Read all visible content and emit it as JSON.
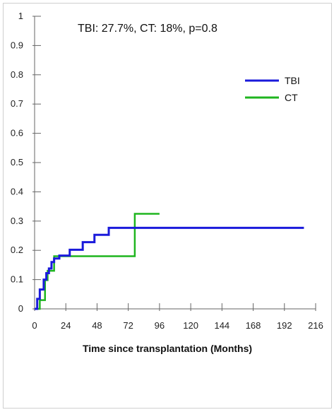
{
  "chart_data": {
    "type": "line",
    "title": "",
    "annotation": "TBI: 27.7%, CT: 18%, p=0.8",
    "xlabel": "Time since transplantation (Months)",
    "ylabel": "",
    "xlim": [
      0,
      216
    ],
    "ylim": [
      0,
      1
    ],
    "x_ticks": [
      0,
      24,
      48,
      72,
      96,
      120,
      144,
      168,
      192,
      216
    ],
    "y_ticks": [
      0,
      0.1,
      0.2,
      0.3,
      0.4,
      0.5,
      0.6,
      0.7,
      0.8,
      0.9,
      1
    ],
    "y_tick_labels": [
      "0",
      "0.1",
      "0.2",
      "0.3",
      "0.4",
      "0.5",
      "0.6",
      "0.7",
      "0.8",
      "0.9",
      "1"
    ],
    "step": true,
    "grid": false,
    "legend": "top-right",
    "series": [
      {
        "name": "TBI",
        "color": "#1a1adb",
        "x": [
          0,
          2,
          4,
          7,
          9,
          11,
          13,
          15,
          19,
          27,
          37,
          46,
          57,
          207
        ],
        "y": [
          0,
          0.034,
          0.066,
          0.1,
          0.122,
          0.138,
          0.16,
          0.172,
          0.182,
          0.202,
          0.228,
          0.253,
          0.277,
          0.277
        ]
      },
      {
        "name": "CT",
        "color": "#1fb51f",
        "x": [
          0,
          4,
          8,
          10,
          15,
          77,
          96
        ],
        "y": [
          0,
          0.03,
          0.098,
          0.13,
          0.18,
          0.325,
          0.325
        ]
      }
    ]
  }
}
